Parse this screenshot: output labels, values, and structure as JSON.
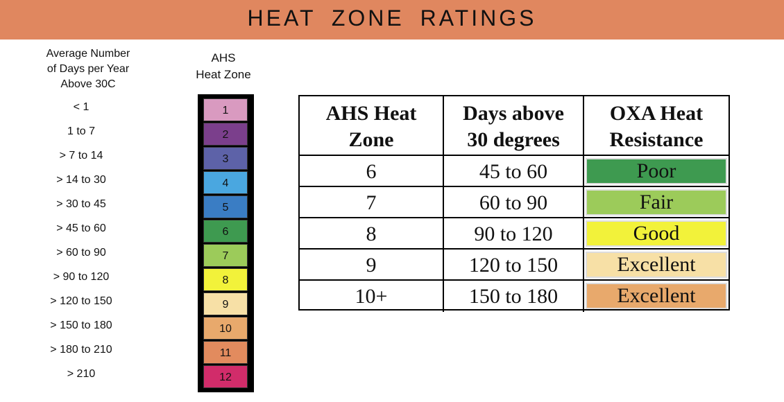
{
  "header": {
    "title": "HEAT ZONE RATINGS"
  },
  "days_column": {
    "heading": [
      "Average Number",
      "of Days per Year",
      "Above 30C"
    ],
    "rows": [
      "< 1",
      "1 to 7",
      "> 7 to 14",
      "> 14 to 30",
      "> 30 to 45",
      "> 45 to 60",
      "> 60 to 90",
      "> 90 to 120",
      "> 120 to 150",
      "> 150 to 180",
      "> 180 to 210",
      "> 210"
    ]
  },
  "zone_column": {
    "heading": [
      "AHS",
      "Heat Zone"
    ],
    "zones": [
      {
        "label": "1",
        "color": "#d99ac0"
      },
      {
        "label": "2",
        "color": "#7b3f8c"
      },
      {
        "label": "3",
        "color": "#5d62a8"
      },
      {
        "label": "4",
        "color": "#4aa7e0"
      },
      {
        "label": "5",
        "color": "#3a7dc4"
      },
      {
        "label": "6",
        "color": "#3e9a50"
      },
      {
        "label": "7",
        "color": "#9ccb5a"
      },
      {
        "label": "8",
        "color": "#f2f23a"
      },
      {
        "label": "9",
        "color": "#f7e0a6"
      },
      {
        "label": "10",
        "color": "#e8a96c"
      },
      {
        "label": "11",
        "color": "#e28b5e"
      },
      {
        "label": "12",
        "color": "#d12c6a"
      }
    ]
  },
  "table": {
    "header": [
      [
        "AHS Heat",
        "Zone"
      ],
      [
        "Days above",
        "30 degrees"
      ],
      [
        "OXA Heat",
        "Resistance"
      ]
    ],
    "rows": [
      {
        "zone": "6",
        "days": "45 to 60",
        "rating": "Poor",
        "color": "#3e9a50"
      },
      {
        "zone": "7",
        "days": "60 to 90",
        "rating": "Fair",
        "color": "#9ccb5a"
      },
      {
        "zone": "8",
        "days": "90 to 120",
        "rating": "Good",
        "color": "#f2f23a"
      },
      {
        "zone": "9",
        "days": "120 to 150",
        "rating": "Excellent",
        "color": "#f7e0a6"
      },
      {
        "zone": "10+",
        "days": "150 to 180",
        "rating": "Excellent",
        "color": "#e8a96c"
      }
    ]
  }
}
